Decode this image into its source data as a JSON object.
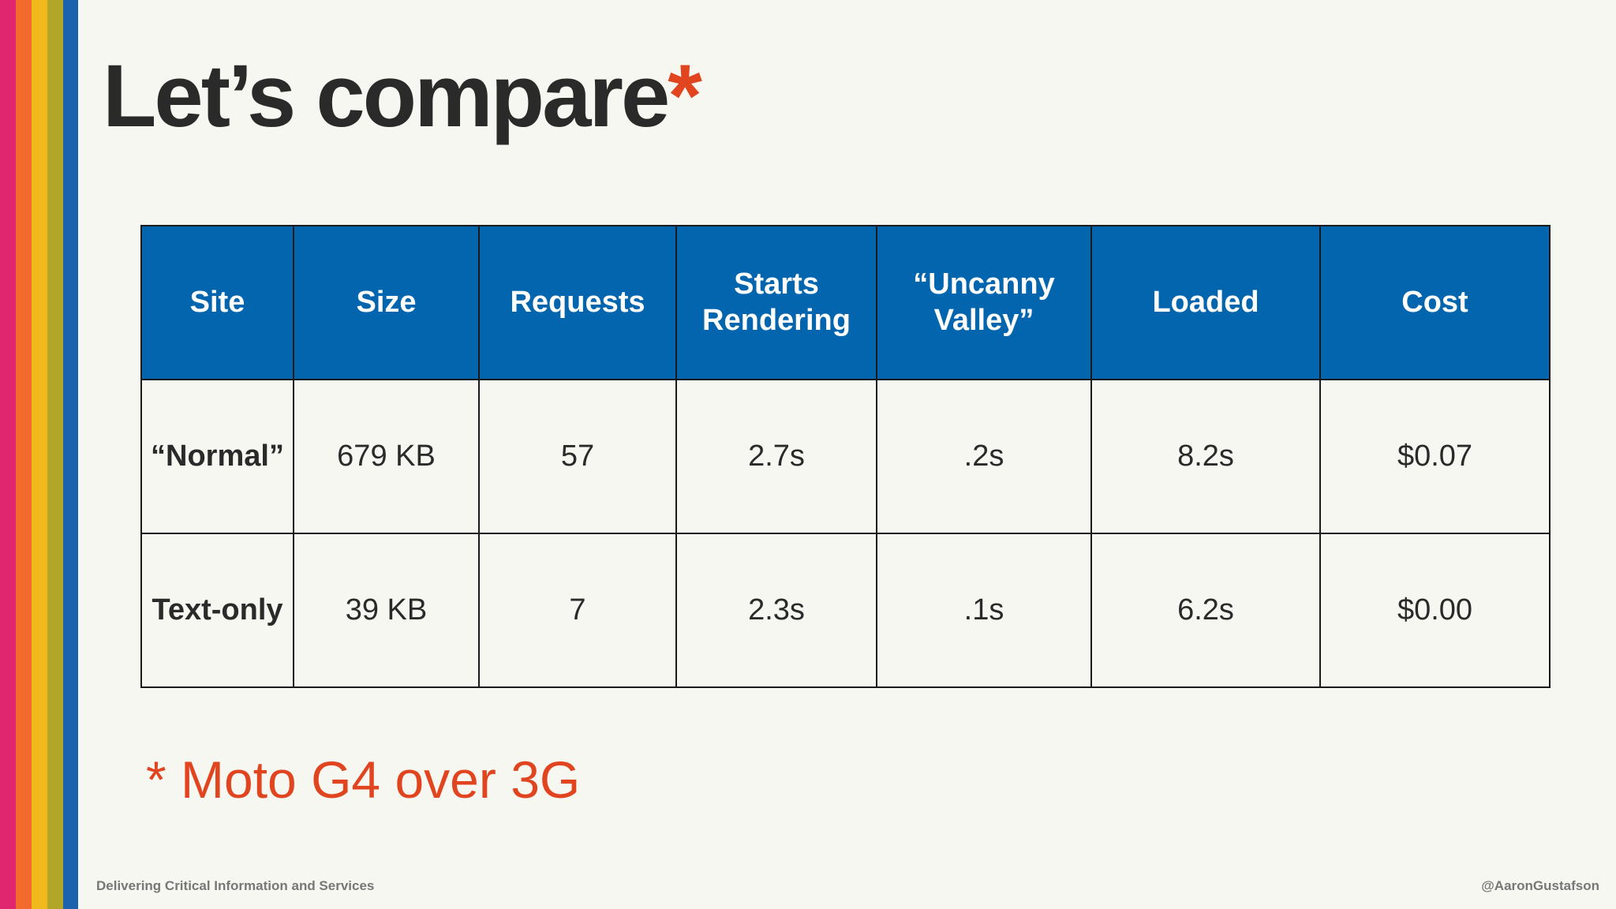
{
  "slide": {
    "title": "Let’s compare",
    "title_asterisk": "*",
    "footnote": "* Moto G4 over 3G",
    "footer_left": "Delivering Critical Information and Services",
    "footer_right": "@AaronGustafson"
  },
  "stripes": [
    "#e0266f",
    "#f26a2e",
    "#f2b91c",
    "#b2a628",
    "#1c63ad"
  ],
  "colors": {
    "accent": "#e04520",
    "header_bg": "#0365ad",
    "background": "#f7f7f2"
  },
  "table": {
    "headers": [
      [
        "Site"
      ],
      [
        "Size"
      ],
      [
        "Requests"
      ],
      [
        "Starts",
        "Rendering"
      ],
      [
        "“Uncanny",
        "Valley”"
      ],
      [
        "Loaded"
      ],
      [
        "Cost"
      ]
    ],
    "rows": [
      [
        "“Normal”",
        "679 KB",
        "57",
        "2.7s",
        ".2s",
        "8.2s",
        "$0.07"
      ],
      [
        "Text-only",
        "39 KB",
        "7",
        "2.3s",
        ".1s",
        "6.2s",
        "$0.00"
      ]
    ]
  }
}
